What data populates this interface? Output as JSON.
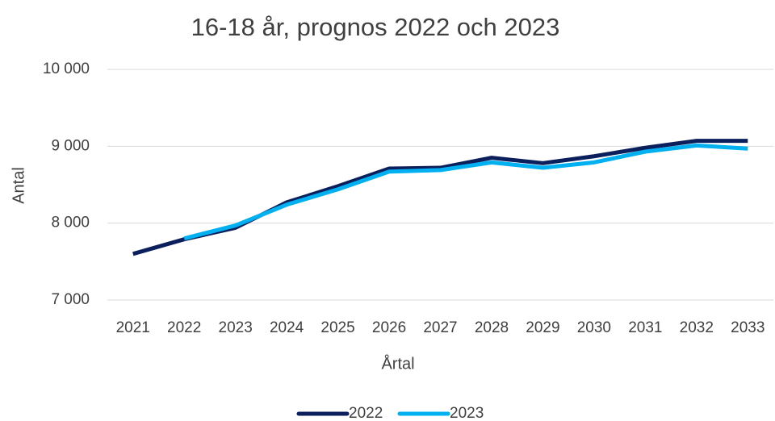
{
  "chart_data": {
    "type": "line",
    "title": "16-18 år, prognos 2022 och 2023",
    "x_label": "Årtal",
    "y_label": "Antal",
    "categories": [
      "2021",
      "2022",
      "2023",
      "2024",
      "2025",
      "2026",
      "2027",
      "2028",
      "2029",
      "2030",
      "2031",
      "2032",
      "2033"
    ],
    "series": [
      {
        "name": "2022",
        "color": "#0b1f5c",
        "values": [
          7600,
          7790,
          7940,
          8270,
          8480,
          8710,
          8720,
          8850,
          8780,
          8870,
          8980,
          9070,
          9070
        ]
      },
      {
        "name": "2023",
        "color": "#00b0f0",
        "values": [
          null,
          7800,
          7970,
          8240,
          8440,
          8670,
          8690,
          8790,
          8720,
          8790,
          8930,
          9010,
          8970
        ]
      }
    ],
    "ylim": [
      7000,
      10000
    ],
    "yticks": [
      {
        "value": 7000,
        "label": "7 000"
      },
      {
        "value": 8000,
        "label": "8 000"
      },
      {
        "value": 9000,
        "label": "9 000"
      },
      {
        "value": 10000,
        "label": "10 000"
      }
    ],
    "grid": true,
    "legend": "bottom"
  }
}
